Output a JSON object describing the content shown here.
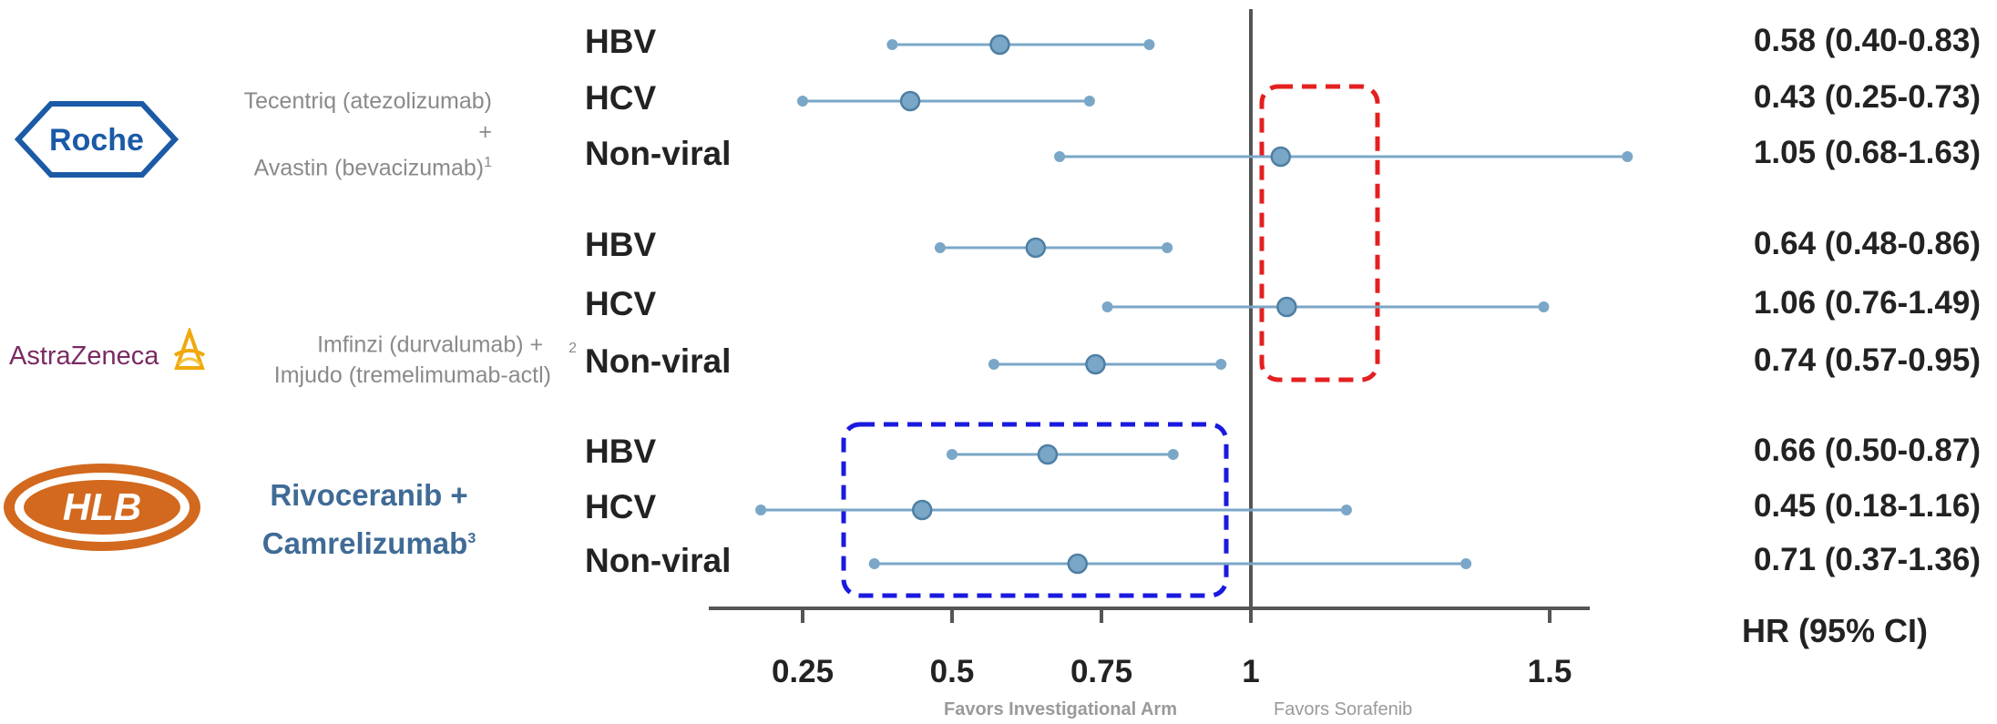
{
  "chart_data": {
    "type": "forest",
    "xlabel": "HR (95% CI)",
    "x_ticks": [
      0.25,
      0.5,
      0.75,
      1,
      1.5
    ],
    "x_tick_labels": [
      "0.25",
      "0.5",
      "0.75",
      "1",
      "1.5"
    ],
    "xlim": [
      0.1,
      1.85
    ],
    "reference_line": 1,
    "favors_left": "Favors Investigational Arm",
    "favors_right": "Favors Sorafenib",
    "point_color": "#7aa7c7",
    "groups": [
      {
        "company": "Roche",
        "regimen_lines": [
          "Tecentriq (atezolizumab) +",
          "Avastin (bevacizumab)"
        ],
        "footnote": "1",
        "rows": [
          {
            "label": "HBV",
            "hr": 0.58,
            "lo": 0.4,
            "hi": 0.83,
            "text": "0.58 (0.40-0.83)"
          },
          {
            "label": "HCV",
            "hr": 0.43,
            "lo": 0.25,
            "hi": 0.73,
            "text": "0.43 (0.25-0.73)"
          },
          {
            "label": "Non-viral",
            "hr": 1.05,
            "lo": 0.68,
            "hi": 1.63,
            "text": "1.05 (0.68-1.63)"
          }
        ]
      },
      {
        "company": "AstraZeneca",
        "regimen_lines": [
          "Imfinzi (durvalumab) +",
          "Imjudo (tremelimumab-actl)"
        ],
        "footnote": "2",
        "rows": [
          {
            "label": "HBV",
            "hr": 0.64,
            "lo": 0.48,
            "hi": 0.86,
            "text": "0.64 (0.48-0.86)"
          },
          {
            "label": "HCV",
            "hr": 1.06,
            "lo": 0.76,
            "hi": 1.49,
            "text": "1.06 (0.76-1.49)"
          },
          {
            "label": "Non-viral",
            "hr": 0.74,
            "lo": 0.57,
            "hi": 0.95,
            "text": "0.74 (0.57-0.95)"
          }
        ]
      },
      {
        "company": "HLB",
        "regimen_lines": [
          "Rivoceranib +",
          "Camrelizumab"
        ],
        "footnote": "3",
        "rows": [
          {
            "label": "HBV",
            "hr": 0.66,
            "lo": 0.5,
            "hi": 0.87,
            "text": "0.66 (0.50-0.87)"
          },
          {
            "label": "HCV",
            "hr": 0.45,
            "lo": 0.18,
            "hi": 1.16,
            "text": "0.45 (0.18-1.16)"
          },
          {
            "label": "Non-viral",
            "hr": 0.71,
            "lo": 0.37,
            "hi": 1.36,
            "text": "0.71 (0.37-1.36)"
          }
        ]
      }
    ],
    "highlights": [
      {
        "color": "#e41f1f",
        "style": "dashed"
      },
      {
        "color": "#1a1adf",
        "style": "dashed"
      }
    ]
  }
}
